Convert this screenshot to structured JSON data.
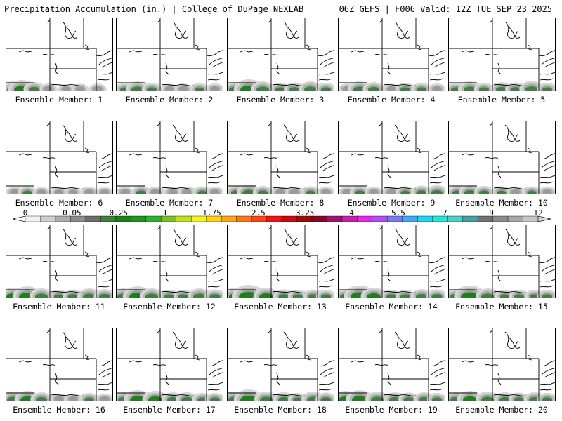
{
  "header": {
    "left": "Precipitation Accumulation (in.) | College of DuPage NEXLAB",
    "right": "06Z GEFS | F006 Valid: 12Z TUE SEP 23 2025"
  },
  "member_prefix": "Ensemble Member: ",
  "members": [
    {
      "number": "1",
      "precip": [
        [
          10,
          0.5
        ],
        [
          22,
          0.7
        ],
        [
          40,
          0.4
        ],
        [
          60,
          0.2
        ],
        [
          85,
          0.1
        ],
        [
          105,
          0.15
        ],
        [
          130,
          0.2
        ]
      ]
    },
    {
      "number": "2",
      "precip": [
        [
          12,
          0.3
        ],
        [
          30,
          0.5
        ],
        [
          50,
          0.3
        ],
        [
          75,
          0.15
        ],
        [
          95,
          0.2
        ],
        [
          118,
          0.25
        ],
        [
          140,
          0.2
        ]
      ]
    },
    {
      "number": "3",
      "precip": [
        [
          10,
          0.4
        ],
        [
          30,
          0.8
        ],
        [
          50,
          0.5
        ],
        [
          75,
          0.3
        ],
        [
          95,
          0.35
        ],
        [
          118,
          0.5
        ],
        [
          140,
          0.3
        ]
      ]
    },
    {
      "number": "4",
      "precip": [
        [
          12,
          0.2
        ],
        [
          30,
          0.5
        ],
        [
          50,
          0.4
        ],
        [
          75,
          0.15
        ],
        [
          95,
          0.3
        ],
        [
          118,
          0.3
        ],
        [
          140,
          0.2
        ]
      ]
    },
    {
      "number": "5",
      "precip": [
        [
          10,
          0.3
        ],
        [
          30,
          0.5
        ],
        [
          50,
          0.3
        ],
        [
          75,
          0.4
        ],
        [
          95,
          0.35
        ],
        [
          118,
          0.55
        ],
        [
          140,
          0.3
        ]
      ]
    },
    {
      "number": "6",
      "precip": [
        [
          12,
          0.2
        ],
        [
          30,
          0.25
        ],
        [
          50,
          0.15
        ],
        [
          75,
          0.1
        ],
        [
          95,
          0.1
        ],
        [
          118,
          0.2
        ],
        [
          140,
          0.15
        ]
      ]
    },
    {
      "number": "7",
      "precip": [
        [
          12,
          0.2
        ],
        [
          35,
          0.3
        ],
        [
          55,
          0.2
        ],
        [
          80,
          0.2
        ],
        [
          100,
          0.2
        ],
        [
          122,
          0.25
        ],
        [
          140,
          0.2
        ]
      ]
    },
    {
      "number": "8",
      "precip": [
        [
          12,
          0.3
        ],
        [
          30,
          0.5
        ],
        [
          50,
          0.3
        ],
        [
          75,
          0.2
        ],
        [
          95,
          0.2
        ],
        [
          118,
          0.25
        ],
        [
          140,
          0.2
        ]
      ]
    },
    {
      "number": "9",
      "precip": [
        [
          12,
          0.2
        ],
        [
          30,
          0.3
        ],
        [
          50,
          0.2
        ],
        [
          75,
          0.2
        ],
        [
          95,
          0.25
        ],
        [
          118,
          0.35
        ],
        [
          140,
          0.4
        ]
      ]
    },
    {
      "number": "10",
      "precip": [
        [
          12,
          0.3
        ],
        [
          30,
          0.4
        ],
        [
          50,
          0.3
        ],
        [
          75,
          0.25
        ],
        [
          95,
          0.2
        ],
        [
          118,
          0.25
        ],
        [
          140,
          0.2
        ]
      ]
    },
    {
      "number": "11",
      "precip": [
        [
          10,
          0.6
        ],
        [
          30,
          0.8
        ],
        [
          50,
          0.5
        ],
        [
          75,
          0.3
        ],
        [
          95,
          0.35
        ],
        [
          118,
          0.5
        ],
        [
          140,
          0.4
        ]
      ]
    },
    {
      "number": "12",
      "precip": [
        [
          10,
          0.5
        ],
        [
          30,
          0.8
        ],
        [
          50,
          0.5
        ],
        [
          75,
          0.3
        ],
        [
          95,
          0.3
        ],
        [
          118,
          0.5
        ],
        [
          140,
          0.35
        ]
      ]
    },
    {
      "number": "13",
      "precip": [
        [
          12,
          0.6
        ],
        [
          30,
          1.0
        ],
        [
          55,
          0.6
        ],
        [
          80,
          0.35
        ],
        [
          100,
          0.3
        ],
        [
          122,
          0.35
        ],
        [
          140,
          0.3
        ]
      ]
    },
    {
      "number": "14",
      "precip": [
        [
          10,
          0.4
        ],
        [
          30,
          0.9
        ],
        [
          50,
          0.6
        ],
        [
          75,
          0.3
        ],
        [
          95,
          0.3
        ],
        [
          118,
          0.4
        ],
        [
          140,
          0.35
        ]
      ]
    },
    {
      "number": "15",
      "precip": [
        [
          10,
          0.4
        ],
        [
          30,
          0.9
        ],
        [
          55,
          0.5
        ],
        [
          80,
          0.3
        ],
        [
          100,
          0.3
        ],
        [
          122,
          0.3
        ],
        [
          140,
          0.3
        ]
      ]
    },
    {
      "number": "16",
      "precip": [
        [
          10,
          0.5
        ],
        [
          30,
          0.6
        ],
        [
          50,
          0.4
        ],
        [
          75,
          0.2
        ],
        [
          95,
          0.2
        ],
        [
          118,
          0.3
        ],
        [
          140,
          0.2
        ]
      ]
    },
    {
      "number": "17",
      "precip": [
        [
          10,
          0.4
        ],
        [
          30,
          0.7
        ],
        [
          55,
          0.6
        ],
        [
          80,
          0.4
        ],
        [
          100,
          0.4
        ],
        [
          122,
          0.3
        ],
        [
          140,
          0.3
        ]
      ]
    },
    {
      "number": "18",
      "precip": [
        [
          10,
          0.5
        ],
        [
          30,
          0.8
        ],
        [
          55,
          0.5
        ],
        [
          80,
          0.4
        ],
        [
          100,
          0.3
        ],
        [
          122,
          0.5
        ],
        [
          140,
          0.35
        ]
      ]
    },
    {
      "number": "19",
      "precip": [
        [
          10,
          0.6
        ],
        [
          30,
          0.7
        ],
        [
          55,
          0.5
        ],
        [
          80,
          0.4
        ],
        [
          100,
          0.35
        ],
        [
          122,
          0.4
        ],
        [
          140,
          0.3
        ]
      ]
    },
    {
      "number": "20",
      "precip": [
        [
          10,
          0.4
        ],
        [
          30,
          0.6
        ],
        [
          55,
          0.5
        ],
        [
          80,
          0.4
        ],
        [
          100,
          0.35
        ],
        [
          122,
          0.4
        ],
        [
          140,
          0.3
        ]
      ]
    }
  ],
  "colorbar": {
    "labels": [
      "0",
      "0.05",
      "0.25",
      "1",
      "1.75",
      "2.5",
      "3.25",
      "4",
      "5.5",
      "7",
      "9",
      "12"
    ],
    "colors": [
      "#f2f2f2",
      "#cfcfcf",
      "#adadad",
      "#8c8c8c",
      "#6e6e6e",
      "#3f7f3f",
      "#1f7f1f",
      "#179a17",
      "#2fb22f",
      "#7cc41e",
      "#c6e01a",
      "#f4f41a",
      "#fcd214",
      "#fca714",
      "#fc7a14",
      "#fc4614",
      "#f01414",
      "#c80a0a",
      "#a00a0a",
      "#820a28",
      "#a0146e",
      "#c81eaa",
      "#e628e6",
      "#b44cf0",
      "#7a7af4",
      "#44a8f8",
      "#22d4f4",
      "#22e8d8",
      "#4ad2c8",
      "#48a0a0",
      "#727272",
      "#8c8c8c",
      "#a8a8a8",
      "#c6c6c6"
    ]
  }
}
